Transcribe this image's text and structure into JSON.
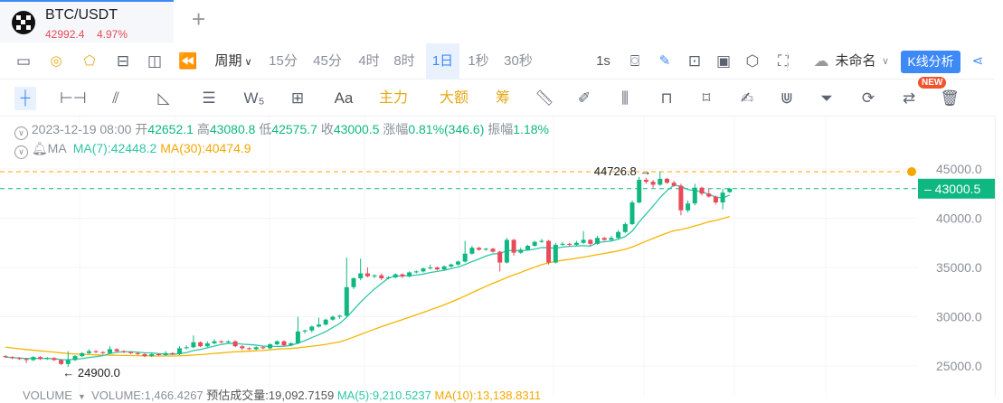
{
  "tab": {
    "symbol": "BTC/USDT",
    "price": "42992.4",
    "change": "4.97%",
    "add_label": "+"
  },
  "toolbar": {
    "icons": [
      "chart-line-icon",
      "gauge-icon",
      "lightning-icon",
      "layout-icon",
      "columns-icon",
      "rewind-icon"
    ],
    "period_label": "周期",
    "periods": [
      "15分",
      "45分",
      "4时",
      "8时",
      "1日",
      "1秒",
      "30秒"
    ],
    "active_period": "1日",
    "realtime": "1s",
    "layout_name": "未命名",
    "analysis_button": "K线分析"
  },
  "drawing": {
    "text_tool": "Aa",
    "main_force": "主力",
    "large": "大额",
    "chips": "筹",
    "new_badge": "NEW"
  },
  "info": {
    "date": "2023-12-19 08:00",
    "open_label": "开",
    "open": "42652.1",
    "high_label": "高",
    "high": "43080.8",
    "low_label": "低",
    "low": "42575.7",
    "close_label": "收",
    "close": "43000.5",
    "change_label": "涨幅",
    "change": "0.81%(346.6)",
    "amp_label": "振幅",
    "amp": "1.18%",
    "ma_label": "MA",
    "ma7": "MA(7):42448.2",
    "ma30": "MA(30):40474.9"
  },
  "volume": {
    "label": "VOLUME",
    "value": "VOLUME:1,466.4267",
    "est": "预估成交量:19,092.7159",
    "ma5": "MA(5):9,210.5237",
    "ma10": "MA(10):13,138.8311"
  },
  "chart_data": {
    "type": "candlestick",
    "yticks": [
      "45000.0",
      "40000.0",
      "35000.0",
      "30000.0",
      "25000.0"
    ],
    "ylim": [
      24000,
      46000
    ],
    "last_price": "43000.5",
    "alert_price": 45000,
    "max_label": "44726.8",
    "min_label": "24900.0",
    "colors": {
      "up": "#0fb880",
      "down": "#e94a5a",
      "ma7": "#2ec7a8",
      "ma30": "#f5b400"
    },
    "ohlc": [
      [
        26000,
        26100,
        25800,
        25900
      ],
      [
        25900,
        26000,
        25700,
        25800
      ],
      [
        25800,
        25900,
        25600,
        25700
      ],
      [
        25700,
        25800,
        25300,
        25600
      ],
      [
        25600,
        26000,
        25500,
        25900
      ],
      [
        25900,
        26000,
        25600,
        25700
      ],
      [
        25700,
        25900,
        25600,
        25800
      ],
      [
        25800,
        25900,
        25500,
        25600
      ],
      [
        25600,
        25700,
        25100,
        25200
      ],
      [
        25200,
        26500,
        24900,
        25600
      ],
      [
        25600,
        26100,
        25500,
        26000
      ],
      [
        26000,
        26400,
        25900,
        26300
      ],
      [
        26300,
        26700,
        26200,
        26500
      ],
      [
        26500,
        26600,
        26300,
        26400
      ],
      [
        26400,
        26500,
        26200,
        26300
      ],
      [
        26300,
        27000,
        26200,
        26700
      ],
      [
        26700,
        26800,
        26400,
        26500
      ],
      [
        26500,
        26600,
        26300,
        26400
      ],
      [
        26400,
        26500,
        26200,
        26300
      ],
      [
        26300,
        26400,
        26100,
        26200
      ],
      [
        26200,
        26300,
        25900,
        26000
      ],
      [
        26000,
        26300,
        25900,
        26200
      ],
      [
        26200,
        26300,
        26000,
        26100
      ],
      [
        26100,
        26500,
        26000,
        26300
      ],
      [
        26300,
        26400,
        26100,
        26200
      ],
      [
        26200,
        27000,
        26100,
        26800
      ],
      [
        26800,
        27100,
        26700,
        26900
      ],
      [
        26900,
        28100,
        26800,
        27400
      ],
      [
        27400,
        27500,
        26900,
        27000
      ],
      [
        27000,
        27500,
        26900,
        27300
      ],
      [
        27300,
        27700,
        27200,
        27500
      ],
      [
        27500,
        27600,
        27300,
        27400
      ],
      [
        27400,
        27600,
        27300,
        27500
      ],
      [
        27500,
        27600,
        26900,
        27000
      ],
      [
        27000,
        27100,
        26600,
        26800
      ],
      [
        26800,
        26900,
        26600,
        26700
      ],
      [
        26700,
        27000,
        26600,
        26900
      ],
      [
        26900,
        27000,
        26700,
        26800
      ],
      [
        26800,
        27300,
        26700,
        27200
      ],
      [
        27200,
        27600,
        27100,
        27500
      ],
      [
        27500,
        27600,
        27000,
        27100
      ],
      [
        27100,
        27400,
        27000,
        27300
      ],
      [
        27300,
        30000,
        27200,
        28500
      ],
      [
        28500,
        28700,
        28300,
        28600
      ],
      [
        28600,
        29100,
        28400,
        29000
      ],
      [
        29000,
        29900,
        28900,
        29200
      ],
      [
        29200,
        29800,
        29100,
        29700
      ],
      [
        29700,
        30100,
        29600,
        30000
      ],
      [
        30000,
        30200,
        29800,
        30100
      ],
      [
        30100,
        36000,
        30000,
        33000
      ],
      [
        33000,
        34000,
        32800,
        33900
      ],
      [
        33900,
        35900,
        33700,
        34400
      ],
      [
        34400,
        35000,
        34000,
        34100
      ],
      [
        34100,
        34300,
        33900,
        34200
      ],
      [
        34200,
        34400,
        33700,
        33900
      ],
      [
        33900,
        34100,
        33800,
        34000
      ],
      [
        34000,
        34400,
        33900,
        34300
      ],
      [
        34300,
        34400,
        33900,
        34100
      ],
      [
        34100,
        34600,
        34000,
        34500
      ],
      [
        34500,
        34700,
        34400,
        34600
      ],
      [
        34600,
        35000,
        34500,
        34900
      ],
      [
        34900,
        35300,
        34800,
        35000
      ],
      [
        35000,
        35100,
        34700,
        34800
      ],
      [
        34800,
        35200,
        34700,
        35100
      ],
      [
        35100,
        35400,
        35000,
        35300
      ],
      [
        35300,
        35700,
        35200,
        35600
      ],
      [
        35600,
        37700,
        35500,
        36400
      ],
      [
        36400,
        37200,
        36300,
        37000
      ],
      [
        37000,
        37100,
        36700,
        36800
      ],
      [
        36800,
        37000,
        36700,
        36900
      ],
      [
        36900,
        37000,
        36500,
        36600
      ],
      [
        36600,
        36700,
        34600,
        35500
      ],
      [
        35500,
        38000,
        35400,
        37800
      ],
      [
        37800,
        37900,
        36200,
        36500
      ],
      [
        36500,
        37000,
        36400,
        36800
      ],
      [
        36800,
        37300,
        36700,
        37200
      ],
      [
        37200,
        37700,
        37100,
        37600
      ],
      [
        37600,
        37900,
        37500,
        37700
      ],
      [
        37700,
        37800,
        35300,
        35500
      ],
      [
        35500,
        37500,
        35400,
        37300
      ],
      [
        37300,
        37600,
        37200,
        37400
      ],
      [
        37400,
        37500,
        37100,
        37300
      ],
      [
        37300,
        37700,
        37200,
        37500
      ],
      [
        37500,
        38700,
        37400,
        37800
      ],
      [
        37800,
        37900,
        37200,
        37400
      ],
      [
        37400,
        38200,
        37300,
        38000
      ],
      [
        38000,
        38100,
        37700,
        37800
      ],
      [
        37800,
        38200,
        37700,
        38000
      ],
      [
        38000,
        38800,
        37900,
        38600
      ],
      [
        38600,
        39600,
        38500,
        39400
      ],
      [
        39400,
        41800,
        39300,
        41600
      ],
      [
        41600,
        44200,
        41500,
        43900
      ],
      [
        43900,
        44100,
        43500,
        43700
      ],
      [
        43700,
        43900,
        43100,
        43400
      ],
      [
        43400,
        44726.8,
        43300,
        44000
      ],
      [
        44000,
        44100,
        43500,
        43600
      ],
      [
        43600,
        43800,
        43200,
        43300
      ],
      [
        43300,
        43500,
        40300,
        40800
      ],
      [
        40800,
        41800,
        40600,
        41500
      ],
      [
        41500,
        43500,
        41300,
        43100
      ],
      [
        43100,
        43200,
        42300,
        42500
      ],
      [
        42500,
        43000,
        42100,
        42200
      ],
      [
        42200,
        42300,
        41400,
        41600
      ],
      [
        41600,
        43000,
        40900,
        42600
      ],
      [
        42652.1,
        43080.8,
        42575.7,
        43000.5
      ]
    ]
  }
}
